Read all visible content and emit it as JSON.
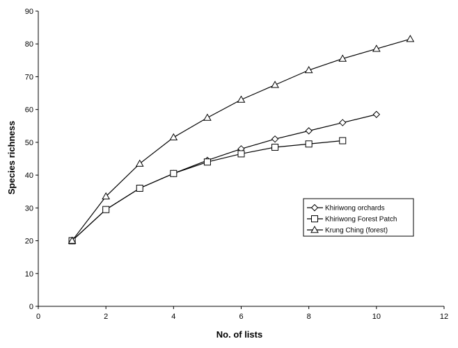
{
  "chart_data": {
    "type": "line",
    "title": "",
    "xlabel": "No. of lists",
    "ylabel": "Species richness",
    "xlim": [
      0,
      12
    ],
    "ylim": [
      0,
      90
    ],
    "xticks": [
      0,
      2,
      4,
      6,
      8,
      10,
      12
    ],
    "yticks": [
      0,
      10,
      20,
      30,
      40,
      50,
      60,
      70,
      80,
      90
    ],
    "grid": false,
    "legend_position": "right",
    "series": [
      {
        "name": "Khiriwong orchards",
        "marker": "diamond",
        "x": [
          1,
          2,
          3,
          4,
          5,
          6,
          7,
          8,
          9,
          10
        ],
        "values": [
          20,
          29.5,
          36,
          40.5,
          44.5,
          48,
          51,
          53.5,
          56,
          58.5
        ]
      },
      {
        "name": "Khiriwong Forest Patch",
        "marker": "square",
        "x": [
          1,
          2,
          3,
          4,
          5,
          6,
          7,
          8,
          9
        ],
        "values": [
          20,
          29.5,
          36,
          40.5,
          44,
          46.5,
          48.5,
          49.5,
          50.5
        ]
      },
      {
        "name": "Krung Ching (forest)",
        "marker": "triangle",
        "x": [
          1,
          2,
          3,
          4,
          5,
          6,
          7,
          8,
          9,
          10,
          11
        ],
        "values": [
          20,
          33.5,
          43.5,
          51.5,
          57.5,
          63,
          67.5,
          72,
          75.5,
          78.5,
          81.5
        ]
      }
    ]
  }
}
